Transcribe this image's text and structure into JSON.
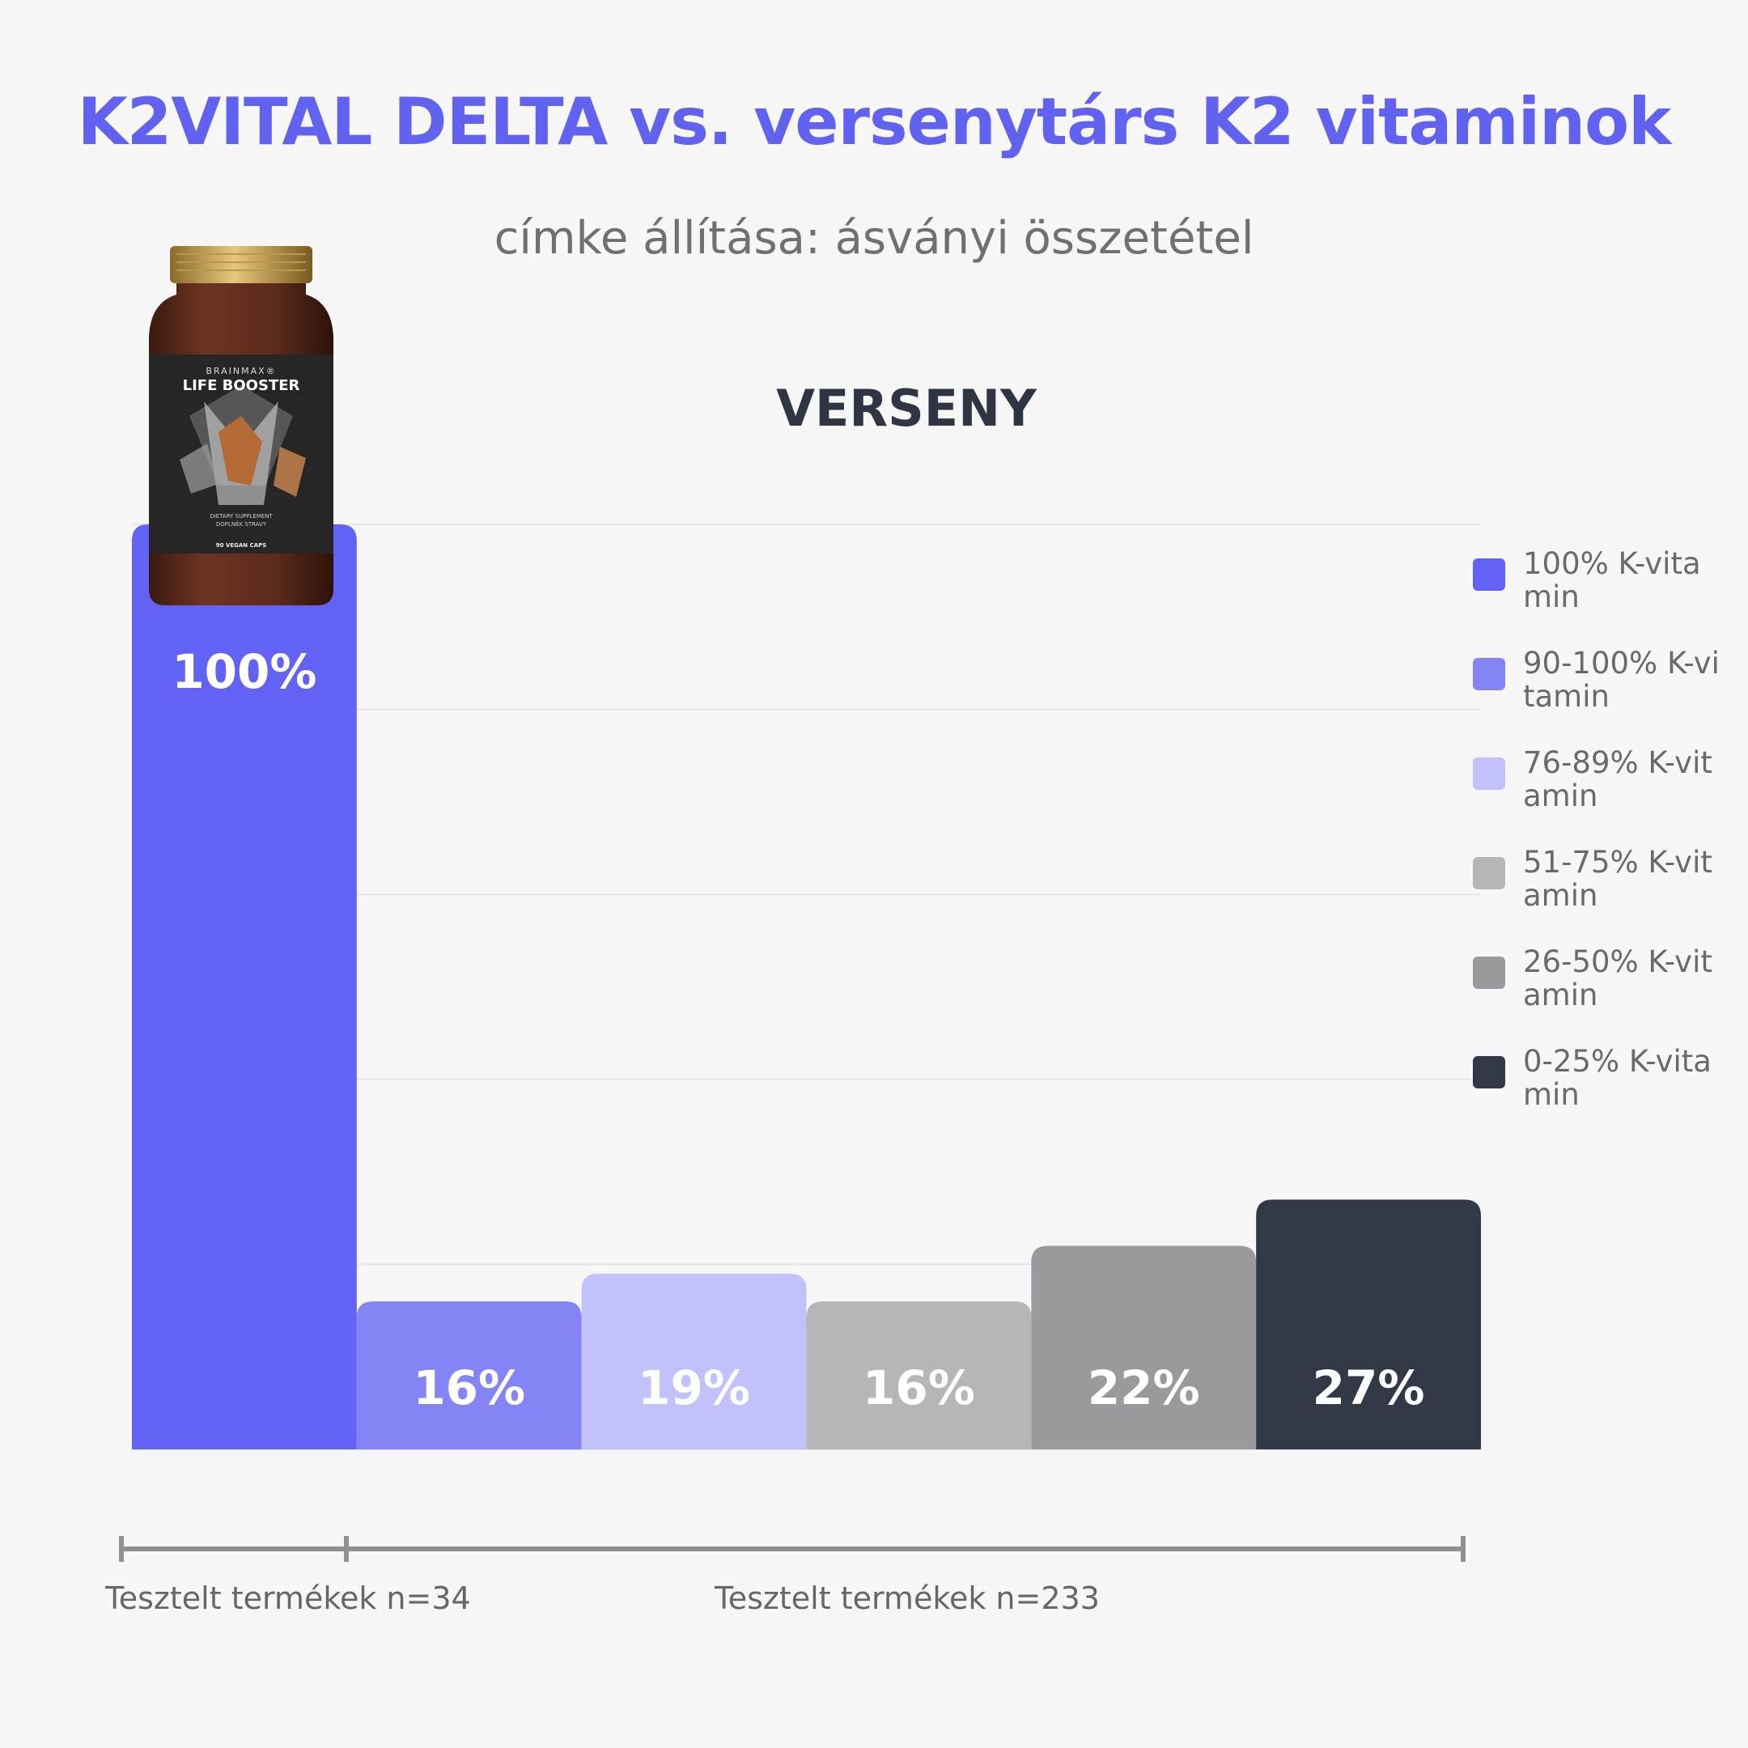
{
  "title": "K2VITAL DELTA vs. versenytárs K2 vitaminok",
  "subtitle": "címke állítása: ásványi összetétel",
  "section_title": "VERSENY",
  "product": {
    "brand": "BRAINMAX®",
    "name": "LIFE BOOSTER",
    "line1": "DIETARY SUPPLEMENT",
    "line2": "DOPLNĚK STRAVY",
    "caps": "90 VEGAN CAPS"
  },
  "chart_data": {
    "type": "bar",
    "title": "VERSENY",
    "categories": [
      "100% K-vitamin",
      "90-100% K-vitamin",
      "76-89% K-vitamin",
      "51-75% K-vitamin",
      "26-50% K-vitamin",
      "0-25% K-vitamin"
    ],
    "values": [
      100,
      16,
      19,
      16,
      22,
      27
    ],
    "labels": [
      "100%",
      "16%",
      "19%",
      "16%",
      "22%",
      "27%"
    ],
    "colors": [
      "#6262f5",
      "#8584f7",
      "#c2c1fb",
      "#b6b6b8",
      "#9a9a9e",
      "#323846"
    ],
    "ylim": [
      0,
      100
    ],
    "grid": true,
    "legend_position": "right"
  },
  "legend": [
    {
      "label": "100% K-vitamin",
      "color": "#6262f5"
    },
    {
      "label": "90-100% K-vitamin",
      "color": "#8584f7"
    },
    {
      "label": "76-89% K-vitamin",
      "color": "#c2c1fb"
    },
    {
      "label": "51-75% K-vitamin",
      "color": "#b6b6b8"
    },
    {
      "label": "26-50% K-vitamin",
      "color": "#9a9a9e"
    },
    {
      "label": "0-25% K-vitamin",
      "color": "#323846"
    }
  ],
  "groups": [
    {
      "label": "Tesztelt termékek n=34"
    },
    {
      "label": "Tesztelt termékek n=233"
    }
  ]
}
